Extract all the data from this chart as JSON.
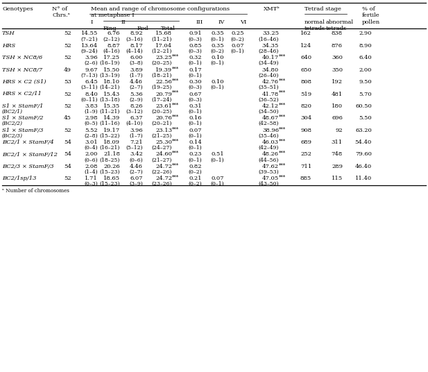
{
  "rows": [
    {
      "genotype": "TSH",
      "genotype2": "",
      "n_chrs": "52",
      "I": "14.55",
      "ring": "6.76",
      "rod": "8.92",
      "total": "15.68",
      "total_stars": "",
      "III": "0.91",
      "IV": "0.35",
      "VI": "0.25",
      "xmt": "33.25",
      "xmt_stars": "",
      "normal": "162",
      "abnormal": "838",
      "pollen": "2.90",
      "range_I": "(7–21)",
      "range_ring": "(2–12)",
      "range_rod": "(3–16)",
      "range_total": "(11–21)",
      "range_III": "(0–3)",
      "range_IV": "(0–1)",
      "range_VI": "(0–2)",
      "range_xmt": "(16–46)"
    },
    {
      "genotype": "HRS",
      "genotype2": "",
      "n_chrs": "52",
      "I": "13.64",
      "ring": "8.87",
      "rod": "8.17",
      "total": "17.04",
      "total_stars": "",
      "III": "0.85",
      "IV": "0.35",
      "VI": "0.07",
      "xmt": "34.35",
      "xmt_stars": "",
      "normal": "124",
      "abnormal": "876",
      "pollen": "8.90",
      "range_I": "(9–24)",
      "range_ring": "(4–16)",
      "range_rod": "(4–14)",
      "range_total": "(12–21)",
      "range_III": "(0–3)",
      "range_IV": "(0–2)",
      "range_VI": "(0–1)",
      "range_xmt": "(28–46)"
    },
    {
      "genotype": "TSH × NC8/6",
      "genotype2": "",
      "n_chrs": "52",
      "I": "3.96",
      "ring": "17.25",
      "rod": "6.00",
      "total": "23.25",
      "total_stars": "***",
      "III": "0.32",
      "IV": "0.10",
      "VI": "",
      "xmt": "40.17",
      "xmt_stars": "***",
      "normal": "640",
      "abnormal": "360",
      "pollen": "6.40",
      "range_I": "(2–6)",
      "range_ring": "(16–19)",
      "range_rod": "(3–8)",
      "range_total": "(20–25)",
      "range_III": "(0–1)",
      "range_IV": "(0–1)",
      "range_VI": "",
      "range_xmt": "(34–49)"
    },
    {
      "genotype": "TSH × NC8/7",
      "genotype2": "",
      "n_chrs": "49",
      "I": "9.67",
      "ring": "15.50",
      "rod": "3.89",
      "total": "19.39",
      "total_stars": "***",
      "III": "0.17",
      "IV": "",
      "VI": "",
      "xmt": "34.80",
      "xmt_stars": "",
      "normal": "650",
      "abnormal": "350",
      "pollen": "2.00",
      "range_I": "(7–13)",
      "range_ring": "(13–19)",
      "range_rod": "(1–7)",
      "range_total": "(18–21)",
      "range_III": "(0–1)",
      "range_IV": "",
      "range_VI": "",
      "range_xmt": "(26–40)"
    },
    {
      "genotype": "HRS × C2 (S1)",
      "genotype2": "",
      "n_chrs": "53",
      "I": "6.45",
      "ring": "18.10",
      "rod": "4.46",
      "total": "22.56",
      "total_stars": "***",
      "III": "0.30",
      "IV": "0.10",
      "VI": "",
      "xmt": "42.76",
      "xmt_stars": "***",
      "normal": "808",
      "abnormal": "192",
      "pollen": "9.50",
      "range_I": "(3–11)",
      "range_ring": "(14–21)",
      "range_rod": "(2–7)",
      "range_total": "(19–25)",
      "range_III": "(0–3)",
      "range_IV": "(0–1)",
      "range_VI": "",
      "range_xmt": "(35–51)"
    },
    {
      "genotype": "HRS × C2/11",
      "genotype2": "",
      "n_chrs": "52",
      "I": "8.40",
      "ring": "15.43",
      "rod": "5.36",
      "total": "20.79",
      "total_stars": "***",
      "III": "0.67",
      "IV": "",
      "VI": "",
      "xmt": "41.78",
      "xmt_stars": "***",
      "normal": "519",
      "abnormal": "481",
      "pollen": "5.70",
      "range_I": "(0–11)",
      "range_ring": "(13–18)",
      "range_rod": "(2–9)",
      "range_total": "(17–24)",
      "range_III": "(0–3)",
      "range_IV": "",
      "range_VI": "",
      "range_xmt": "(36–52)"
    },
    {
      "genotype": "S1 × StamF/1",
      "genotype2": "(BC2/1)",
      "n_chrs": "52",
      "I": "3.83",
      "ring": "15.35",
      "rod": "8.26",
      "total": "23.61",
      "total_stars": "***",
      "III": "0.31",
      "IV": "",
      "VI": "",
      "xmt": "42.12",
      "xmt_stars": "***",
      "normal": "820",
      "abnormal": "180",
      "pollen": "60.50",
      "range_I": "(1–9)",
      "range_ring": "(11–21)",
      "range_rod": "(3–12)",
      "range_total": "(20–25)",
      "range_III": "(0–1)",
      "range_IV": "",
      "range_VI": "",
      "range_xmt": "(34–50)"
    },
    {
      "genotype": "S1 × StamF/2",
      "genotype2": "(BC2/2)",
      "n_chrs": "45",
      "I": "2.98",
      "ring": "14.39",
      "rod": "6.37",
      "total": "20.76",
      "total_stars": "***",
      "III": "0.16",
      "IV": "",
      "VI": "",
      "xmt": "48.67",
      "xmt_stars": "***",
      "normal": "304",
      "abnormal": "696",
      "pollen": "5.50",
      "range_I": "(0–5)",
      "range_ring": "(11–16)",
      "range_rod": "(4–10)",
      "range_total": "(20–21)",
      "range_III": "(0–1)",
      "range_IV": "",
      "range_VI": "",
      "range_xmt": "(42–58)"
    },
    {
      "genotype": "S1 × StamF/3",
      "genotype2": "(BC2/3)",
      "n_chrs": "52",
      "I": "5.52",
      "ring": "19.17",
      "rod": "3.96",
      "total": "23.13",
      "total_stars": "***",
      "III": "0.07",
      "IV": "",
      "VI": "",
      "xmt": "38.96",
      "xmt_stars": "***",
      "normal": "908",
      "abnormal": "92",
      "pollen": "63.20",
      "range_I": "(2–8)",
      "range_ring": "(15–22)",
      "range_rod": "(1–7)",
      "range_total": "(21–25)",
      "range_III": "(0–1)",
      "range_IV": "",
      "range_VI": "",
      "range_xmt": "(35–46)"
    },
    {
      "genotype": "BC2/1 × StamF/4",
      "genotype2": "",
      "n_chrs": "54",
      "I": "3.01",
      "ring": "18.09",
      "rod": "7.21",
      "total": "25.30",
      "total_stars": "***",
      "III": "0.14",
      "IV": "",
      "VI": "",
      "xmt": "46.03",
      "xmt_stars": "***",
      "normal": "689",
      "abnormal": "311",
      "pollen": "54.40",
      "range_I": "(0–4)",
      "range_ring": "(16–21)",
      "range_rod": "(5–12)",
      "range_total": "(24–27)",
      "range_III": "(0–1)",
      "range_IV": "",
      "range_VI": "",
      "range_xmt": "(42–49)"
    },
    {
      "genotype": "BC2/1 × StamF/12",
      "genotype2": "",
      "n_chrs": "54",
      "I": "2.00",
      "ring": "21.18",
      "rod": "3.42",
      "total": "24.60",
      "total_stars": "***",
      "III": "0.23",
      "IV": "0.51",
      "VI": "",
      "xmt": "48.26",
      "xmt_stars": "***",
      "normal": "252",
      "abnormal": "748",
      "pollen": "79.60",
      "range_I": "(0–6)",
      "range_ring": "(18–25)",
      "range_rod": "(0–6)",
      "range_total": "(21–27)",
      "range_III": "(0–1)",
      "range_IV": "(0–1)",
      "range_VI": "",
      "range_xmt": "(44–56)"
    },
    {
      "genotype": "BC2/3 × StamF/3",
      "genotype2": "",
      "n_chrs": "54",
      "I": "2.08",
      "ring": "20.26",
      "rod": "4.46",
      "total": "24.72",
      "total_stars": "***",
      "III": "0.82",
      "IV": "",
      "VI": "",
      "xmt": "47.62",
      "xmt_stars": "***",
      "normal": "711",
      "abnormal": "289",
      "pollen": "46.40",
      "range_I": "(1–4)",
      "range_ring": "(15–23)",
      "range_rod": "(2–7)",
      "range_total": "(22–26)",
      "range_III": "(0–2)",
      "range_IV": "",
      "range_VI": "",
      "range_xmt": "(39–53)"
    },
    {
      "genotype": "BC2/1sp/13",
      "genotype2": "",
      "n_chrs": "52",
      "I": "1.71",
      "ring": "18.65",
      "rod": "6.07",
      "total": "24.72",
      "total_stars": "***",
      "III": "0.21",
      "IV": "0.07",
      "VI": "",
      "xmt": "47.05",
      "xmt_stars": "***",
      "normal": "885",
      "abnormal": "115",
      "pollen": "11.40",
      "range_I": "(0–3)",
      "range_ring": "(15–23)",
      "range_rod": "(3–9)",
      "range_total": "(23–26)",
      "range_III": "(0–2)",
      "range_IV": "(0–1)",
      "range_VI": "",
      "range_xmt": "(43–50)"
    }
  ]
}
